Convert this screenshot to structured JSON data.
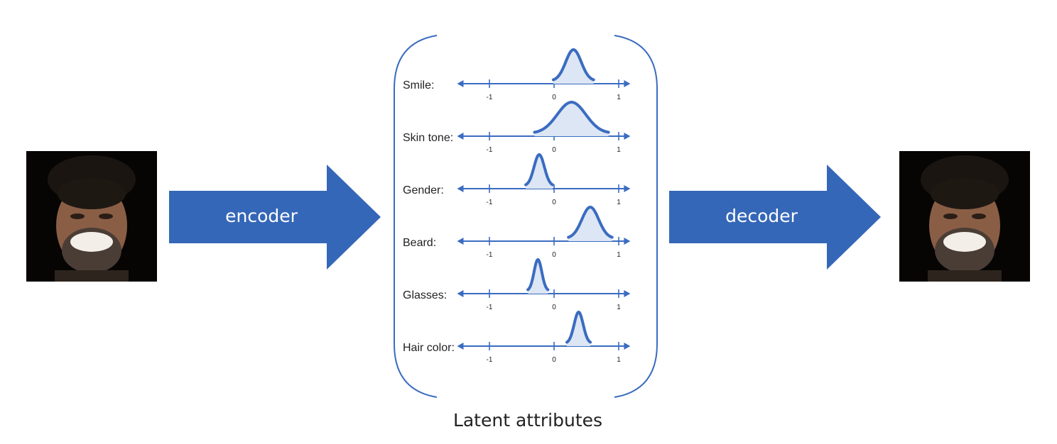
{
  "arrows": {
    "encoder_label": "encoder",
    "decoder_label": "decoder"
  },
  "latent": {
    "caption": "Latent attributes",
    "axis_ticks": [
      "-1",
      "0",
      "1"
    ],
    "attributes": [
      {
        "label": "Smile:",
        "mean": 0.3,
        "spread": 0.12
      },
      {
        "label": "Skin tone:",
        "mean": 0.27,
        "spread": 0.22
      },
      {
        "label": "Gender:",
        "mean": -0.23,
        "spread": 0.08
      },
      {
        "label": "Beard:",
        "mean": 0.56,
        "spread": 0.13
      },
      {
        "label": "Glasses:",
        "mean": -0.25,
        "spread": 0.06
      },
      {
        "label": "Hair color:",
        "mean": 0.38,
        "spread": 0.07
      }
    ]
  },
  "colors": {
    "arrow_fill": "#3567b8",
    "curve": "#3a6cc0",
    "curve_fill": "#dce6f4",
    "axis": "#3a6cc0"
  }
}
